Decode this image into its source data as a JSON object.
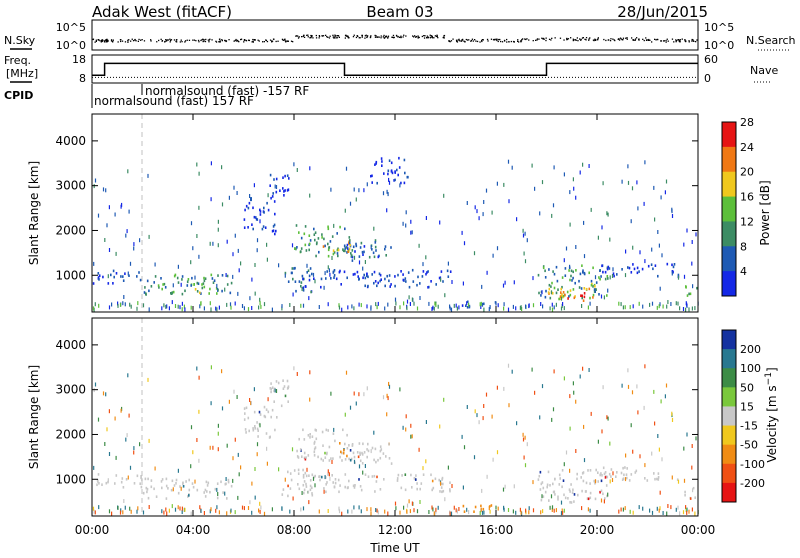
{
  "header": {
    "station": "Adak West (fitACF)",
    "beam": "Beam 03",
    "date": "28/Jun/2015"
  },
  "top_panels": {
    "nsky_label": "N.Sky",
    "nsky_ticks": [
      "10^5",
      "10^0"
    ],
    "nsearch_label": "N.Search",
    "freq_label": "Freq.",
    "freq_unit": "[MHz]",
    "freq_ticks": [
      "18",
      "8"
    ],
    "nave_ticks": [
      "60",
      "0"
    ],
    "nave_label": "Nave",
    "cpid_label": "CPID",
    "cpid_entries": [
      "normalsound (fast) -157 RF",
      "normalsound (fast) 157 RF"
    ]
  },
  "colorbars": {
    "power": {
      "label": "Power [dB]",
      "ticks": [
        "4",
        "8",
        "12",
        "16",
        "20",
        "24",
        "28"
      ],
      "colors": [
        "#1428e6",
        "#1e5ab4",
        "#3c8c64",
        "#5cbf3a",
        "#f0c81e",
        "#f07814",
        "#e61414"
      ]
    },
    "velocity": {
      "label": "Velocity [m s^-1]",
      "ticks": [
        "200",
        "100",
        "50",
        "15",
        "-15",
        "-50",
        "-100",
        "-200"
      ],
      "colors": [
        "#1432a0",
        "#287890",
        "#3c8c46",
        "#7ac83c",
        "#c8c8c8",
        "#f0c81e",
        "#f08c14",
        "#f05014",
        "#e61414"
      ]
    }
  },
  "chart_data": [
    {
      "type": "heatmap",
      "title": "Power",
      "ylabel": "Slant Range [km]",
      "xlabel": "",
      "xlim": [
        0,
        24
      ],
      "ylim": [
        180,
        4600
      ],
      "yticks": [
        "1000",
        "2000",
        "3000",
        "4000"
      ],
      "xticks": [
        "00:00",
        "04:00",
        "08:00",
        "12:00",
        "16:00",
        "20:00",
        "00:00"
      ],
      "patches": [
        {
          "t0": 0.0,
          "t1": 2.0,
          "r0": 800,
          "r1": 1100,
          "power": 6
        },
        {
          "t0": 2.0,
          "t1": 5.5,
          "r0": 550,
          "r1": 1000,
          "power": 12
        },
        {
          "t0": 4.0,
          "t1": 5.0,
          "r0": 550,
          "r1": 800,
          "power": 18
        },
        {
          "t0": 6.0,
          "t1": 7.3,
          "r0": 1900,
          "r1": 2600,
          "power": 5
        },
        {
          "t0": 7.0,
          "t1": 7.8,
          "r0": 2600,
          "r1": 3300,
          "power": 4
        },
        {
          "t0": 7.5,
          "t1": 8.7,
          "r0": 600,
          "r1": 1200,
          "power": 9
        },
        {
          "t0": 8.0,
          "t1": 10.3,
          "r0": 1400,
          "r1": 2100,
          "power": 12
        },
        {
          "t0": 9.0,
          "t1": 10.2,
          "r0": 1500,
          "r1": 1750,
          "power": 20
        },
        {
          "t0": 10.0,
          "t1": 12.0,
          "r0": 1300,
          "r1": 1800,
          "power": 8
        },
        {
          "t0": 8.3,
          "t1": 14.2,
          "r0": 700,
          "r1": 1100,
          "power": 6
        },
        {
          "t0": 11.0,
          "t1": 12.5,
          "r0": 3000,
          "r1": 3600,
          "power": 4
        },
        {
          "t0": 14.5,
          "t1": 16.0,
          "r0": 250,
          "r1": 400,
          "power": 8
        },
        {
          "t0": 17.6,
          "t1": 20.4,
          "r0": 450,
          "r1": 1200,
          "power": 12
        },
        {
          "t0": 18.0,
          "t1": 20.0,
          "r0": 450,
          "r1": 800,
          "power": 20
        },
        {
          "t0": 18.5,
          "t1": 19.6,
          "r0": 400,
          "r1": 600,
          "power": 28
        },
        {
          "t0": 20.0,
          "t1": 23.2,
          "r0": 950,
          "r1": 1250,
          "power": 5
        },
        {
          "t0": 23.4,
          "t1": 24.0,
          "r0": 500,
          "r1": 800,
          "power": 14
        }
      ]
    },
    {
      "type": "heatmap",
      "title": "Velocity",
      "ylabel": "Slant Range [km]",
      "xlabel": "Time UT",
      "xlim": [
        0,
        24
      ],
      "ylim": [
        180,
        4600
      ],
      "yticks": [
        "1000",
        "2000",
        "3000",
        "4000"
      ],
      "xticks": [
        "00:00",
        "04:00",
        "08:00",
        "12:00",
        "16:00",
        "20:00",
        "00:00"
      ],
      "patches": [
        {
          "t0": 0.0,
          "t1": 2.0,
          "r0": 800,
          "r1": 1100,
          "velocity": 0
        },
        {
          "t0": 2.0,
          "t1": 5.5,
          "r0": 550,
          "r1": 1000,
          "velocity": 0
        },
        {
          "t0": 6.0,
          "t1": 7.3,
          "r0": 1900,
          "r1": 2600,
          "velocity": 0
        },
        {
          "t0": 7.0,
          "t1": 7.8,
          "r0": 2600,
          "r1": 3300,
          "velocity": 0
        },
        {
          "t0": 7.5,
          "t1": 8.7,
          "r0": 600,
          "r1": 1200,
          "velocity": 0
        },
        {
          "t0": 8.0,
          "t1": 10.3,
          "r0": 1400,
          "r1": 2100,
          "velocity": 0
        },
        {
          "t0": 9.7,
          "t1": 10.1,
          "r0": 1450,
          "r1": 1700,
          "velocity": -40
        },
        {
          "t0": 10.0,
          "t1": 12.0,
          "r0": 1300,
          "r1": 1800,
          "velocity": 0
        },
        {
          "t0": 8.3,
          "t1": 14.2,
          "r0": 700,
          "r1": 1100,
          "velocity": 0
        },
        {
          "t0": 14.5,
          "t1": 16.0,
          "r0": 250,
          "r1": 400,
          "velocity": -40
        },
        {
          "t0": 17.6,
          "t1": 20.4,
          "r0": 450,
          "r1": 1200,
          "velocity": 0
        },
        {
          "t0": 20.0,
          "t1": 23.2,
          "r0": 950,
          "r1": 1250,
          "velocity": 0
        },
        {
          "t0": 23.4,
          "t1": 24.0,
          "r0": 500,
          "r1": 800,
          "velocity": 0
        }
      ]
    },
    {
      "type": "line",
      "title": "Freq.",
      "x": [
        0.0,
        0.5,
        0.5,
        10.0,
        10.0,
        18.0,
        18.0,
        24.0
      ],
      "y": [
        10.8,
        10.8,
        15.0,
        15.0,
        10.8,
        10.8,
        15.0,
        15.0
      ],
      "ylim": [
        8,
        18
      ]
    },
    {
      "type": "line",
      "title": "Nave",
      "x": [
        0.0,
        24.0
      ],
      "y": [
        12,
        12
      ],
      "ylim": [
        0,
        60
      ]
    }
  ]
}
